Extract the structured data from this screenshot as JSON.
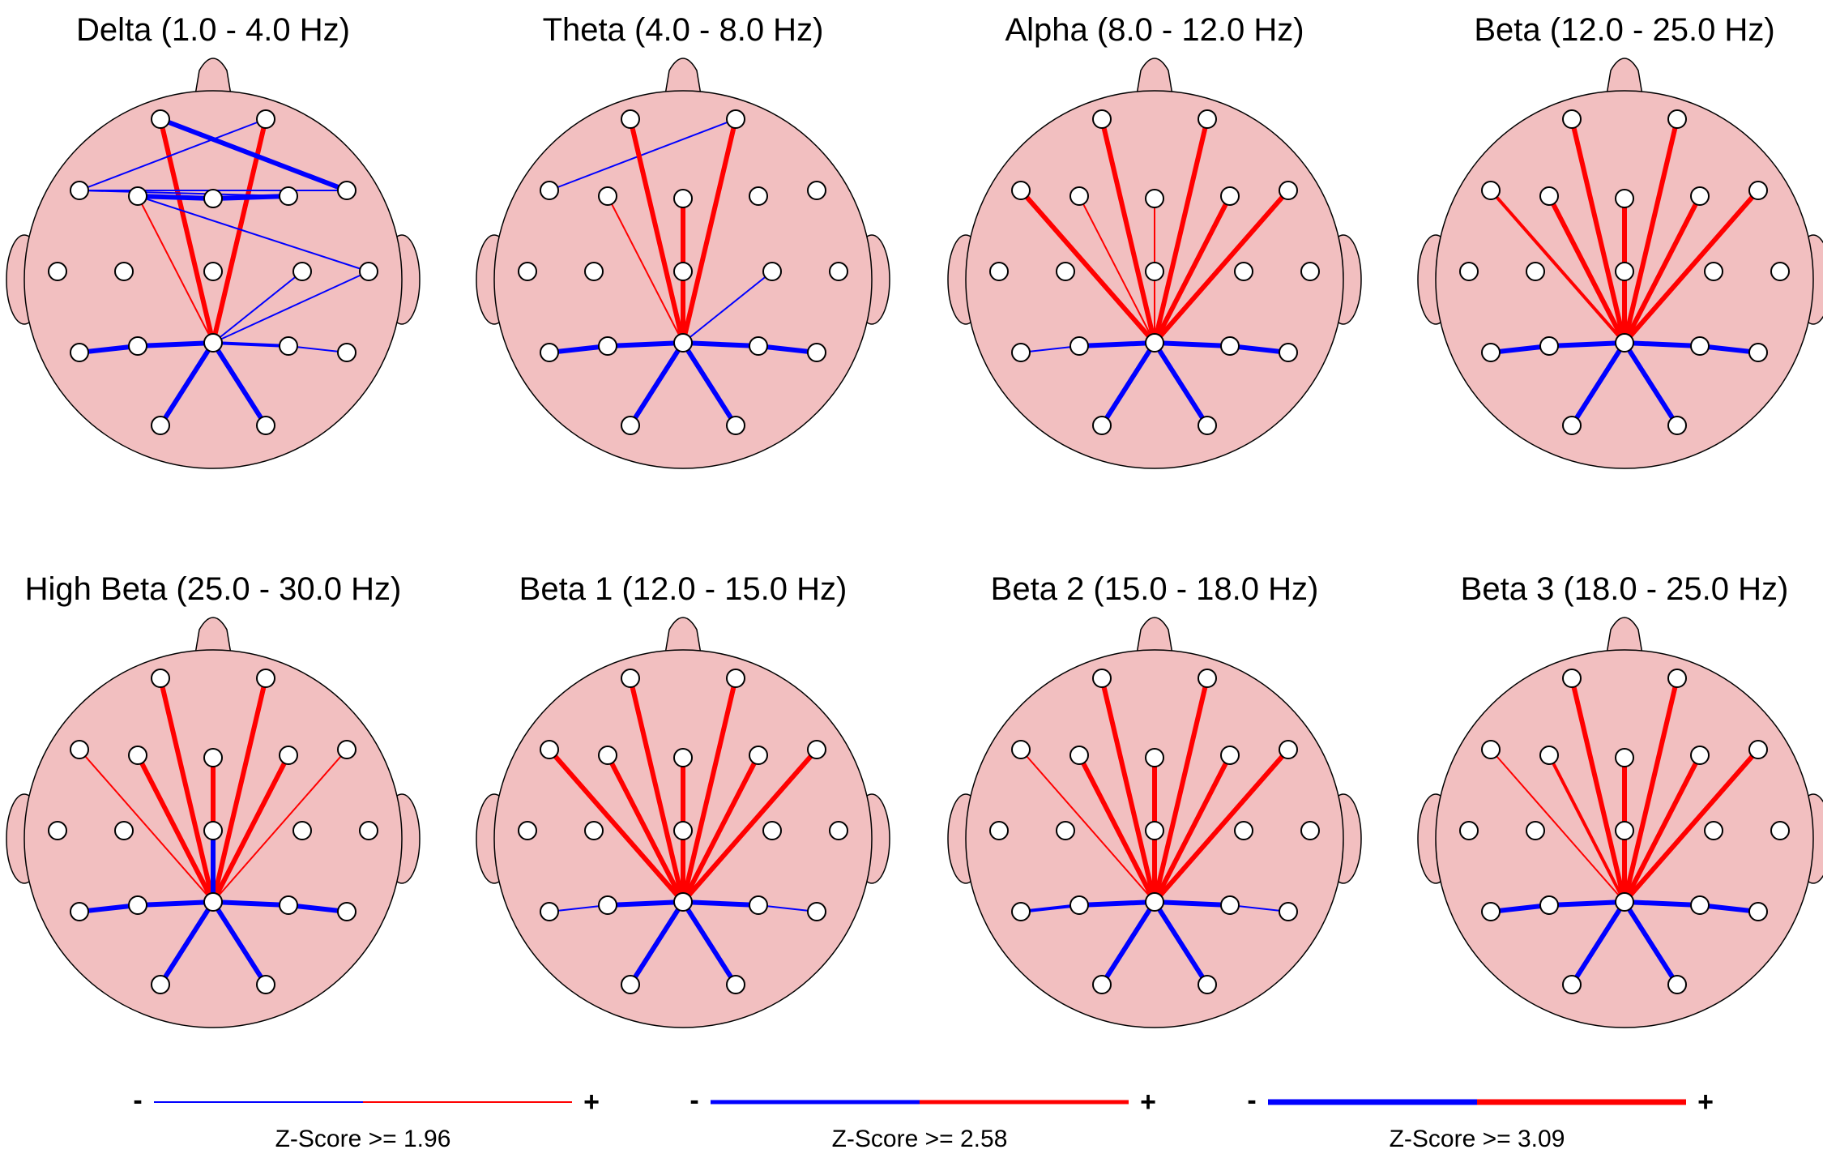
{
  "colors": {
    "head_fill": "#f2bfc0",
    "head_stroke": "#000000",
    "electrode_fill": "#ffffff",
    "positive": "#ff0000",
    "negative": "#0000ff"
  },
  "panels": [
    {
      "title": "Delta (1.0 - 4.0 Hz)",
      "connections": [
        [
          "FP1",
          "Pz",
          "+",
          3
        ],
        [
          "FP2",
          "Pz",
          "+",
          3
        ],
        [
          "FP1",
          "F8",
          "-",
          3
        ],
        [
          "FP2",
          "F7",
          "-",
          1
        ],
        [
          "F7",
          "F4",
          "-",
          1
        ],
        [
          "F7",
          "F8",
          "-",
          1
        ],
        [
          "F3",
          "Fz",
          "-",
          3
        ],
        [
          "Fz",
          "F4",
          "-",
          3
        ],
        [
          "F3",
          "Pz",
          "+",
          1
        ],
        [
          "F3",
          "T4",
          "-",
          1
        ],
        [
          "T4",
          "Pz",
          "-",
          1
        ],
        [
          "C4",
          "Pz",
          "-",
          1
        ],
        [
          "T5",
          "P3",
          "-",
          3
        ],
        [
          "P3",
          "Pz",
          "-",
          3
        ],
        [
          "Pz",
          "P4",
          "-",
          2
        ],
        [
          "P4",
          "T6",
          "-",
          1
        ],
        [
          "Pz",
          "O1",
          "-",
          3
        ],
        [
          "Pz",
          "O2",
          "-",
          3
        ]
      ]
    },
    {
      "title": "Theta (4.0 - 8.0 Hz)",
      "connections": [
        [
          "F7",
          "FP2",
          "-",
          1
        ],
        [
          "FP1",
          "Pz",
          "+",
          3
        ],
        [
          "FP2",
          "Pz",
          "+",
          3
        ],
        [
          "F3",
          "Pz",
          "+",
          1
        ],
        [
          "Fz",
          "Pz",
          "+",
          3
        ],
        [
          "C4",
          "Pz",
          "-",
          1
        ],
        [
          "T5",
          "P3",
          "-",
          3
        ],
        [
          "P3",
          "Pz",
          "-",
          3
        ],
        [
          "Pz",
          "P4",
          "-",
          3
        ],
        [
          "P4",
          "T6",
          "-",
          3
        ],
        [
          "Pz",
          "O1",
          "-",
          3
        ],
        [
          "Pz",
          "O2",
          "-",
          3
        ]
      ]
    },
    {
      "title": "Alpha (8.0 - 12.0 Hz)",
      "connections": [
        [
          "FP1",
          "Pz",
          "+",
          3
        ],
        [
          "FP2",
          "Pz",
          "+",
          3
        ],
        [
          "F7",
          "Pz",
          "+",
          3
        ],
        [
          "F8",
          "Pz",
          "+",
          3
        ],
        [
          "F3",
          "Pz",
          "+",
          1
        ],
        [
          "F4",
          "Pz",
          "+",
          3
        ],
        [
          "Fz",
          "Pz",
          "+",
          1
        ],
        [
          "T5",
          "P3",
          "-",
          1
        ],
        [
          "P3",
          "Pz",
          "-",
          3
        ],
        [
          "Pz",
          "P4",
          "-",
          3
        ],
        [
          "P4",
          "T6",
          "-",
          3
        ],
        [
          "Pz",
          "O1",
          "-",
          3
        ],
        [
          "Pz",
          "O2",
          "-",
          3
        ]
      ]
    },
    {
      "title": "Beta (12.0 - 25.0 Hz)",
      "connections": [
        [
          "FP1",
          "Pz",
          "+",
          3
        ],
        [
          "FP2",
          "Pz",
          "+",
          3
        ],
        [
          "F7",
          "Pz",
          "+",
          2
        ],
        [
          "F8",
          "Pz",
          "+",
          3
        ],
        [
          "F3",
          "Pz",
          "+",
          3
        ],
        [
          "F4",
          "Pz",
          "+",
          3
        ],
        [
          "Fz",
          "Pz",
          "+",
          3
        ],
        [
          "T5",
          "P3",
          "-",
          3
        ],
        [
          "P3",
          "Pz",
          "-",
          3
        ],
        [
          "Pz",
          "P4",
          "-",
          3
        ],
        [
          "P4",
          "T6",
          "-",
          3
        ],
        [
          "Pz",
          "O1",
          "-",
          3
        ],
        [
          "Pz",
          "O2",
          "-",
          3
        ]
      ]
    },
    {
      "title": "High Beta (25.0 - 30.0 Hz)",
      "connections": [
        [
          "FP1",
          "Pz",
          "+",
          3
        ],
        [
          "FP2",
          "Pz",
          "+",
          3
        ],
        [
          "F7",
          "Pz",
          "+",
          1
        ],
        [
          "F8",
          "Pz",
          "+",
          1
        ],
        [
          "F3",
          "Pz",
          "+",
          3
        ],
        [
          "F4",
          "Pz",
          "+",
          3
        ],
        [
          "Fz",
          "Pz",
          "+",
          3
        ],
        [
          "Cz",
          "Pz",
          "-",
          3
        ],
        [
          "T5",
          "P3",
          "-",
          3
        ],
        [
          "P3",
          "Pz",
          "-",
          3
        ],
        [
          "Pz",
          "P4",
          "-",
          3
        ],
        [
          "P4",
          "T6",
          "-",
          3
        ],
        [
          "Pz",
          "O1",
          "-",
          3
        ],
        [
          "Pz",
          "O2",
          "-",
          3
        ]
      ]
    },
    {
      "title": "Beta 1 (12.0 - 15.0 Hz)",
      "connections": [
        [
          "FP1",
          "Pz",
          "+",
          3
        ],
        [
          "FP2",
          "Pz",
          "+",
          3
        ],
        [
          "F7",
          "Pz",
          "+",
          3
        ],
        [
          "F8",
          "Pz",
          "+",
          3
        ],
        [
          "F3",
          "Pz",
          "+",
          3
        ],
        [
          "F4",
          "Pz",
          "+",
          3
        ],
        [
          "Fz",
          "Pz",
          "+",
          3
        ],
        [
          "T5",
          "P3",
          "-",
          1
        ],
        [
          "P3",
          "Pz",
          "-",
          3
        ],
        [
          "Pz",
          "P4",
          "-",
          3
        ],
        [
          "P4",
          "T6",
          "-",
          1
        ],
        [
          "Pz",
          "O1",
          "-",
          3
        ],
        [
          "Pz",
          "O2",
          "-",
          3
        ]
      ]
    },
    {
      "title": "Beta 2 (15.0 - 18.0 Hz)",
      "connections": [
        [
          "FP1",
          "Pz",
          "+",
          3
        ],
        [
          "FP2",
          "Pz",
          "+",
          3
        ],
        [
          "F7",
          "Pz",
          "+",
          1
        ],
        [
          "F8",
          "Pz",
          "+",
          3
        ],
        [
          "F3",
          "Pz",
          "+",
          3
        ],
        [
          "F4",
          "Pz",
          "+",
          3
        ],
        [
          "Fz",
          "Pz",
          "+",
          3
        ],
        [
          "T5",
          "P3",
          "-",
          2
        ],
        [
          "P3",
          "Pz",
          "-",
          3
        ],
        [
          "Pz",
          "P4",
          "-",
          3
        ],
        [
          "P4",
          "T6",
          "-",
          1
        ],
        [
          "Pz",
          "O1",
          "-",
          3
        ],
        [
          "Pz",
          "O2",
          "-",
          3
        ]
      ]
    },
    {
      "title": "Beta 3 (18.0 - 25.0 Hz)",
      "connections": [
        [
          "FP1",
          "Pz",
          "+",
          3
        ],
        [
          "FP2",
          "Pz",
          "+",
          3
        ],
        [
          "F7",
          "Pz",
          "+",
          1
        ],
        [
          "F8",
          "Pz",
          "+",
          3
        ],
        [
          "F3",
          "Pz",
          "+",
          2
        ],
        [
          "F4",
          "Pz",
          "+",
          3
        ],
        [
          "Fz",
          "Pz",
          "+",
          3
        ],
        [
          "T5",
          "P3",
          "-",
          3
        ],
        [
          "P3",
          "Pz",
          "-",
          3
        ],
        [
          "Pz",
          "P4",
          "-",
          3
        ],
        [
          "P4",
          "T6",
          "-",
          3
        ],
        [
          "Pz",
          "O1",
          "-",
          3
        ],
        [
          "Pz",
          "O2",
          "-",
          3
        ]
      ]
    }
  ],
  "legend": [
    {
      "label": "Z-Score >= 1.96",
      "minus": "-",
      "plus": "+"
    },
    {
      "label": "Z-Score >= 2.58",
      "minus": "-",
      "plus": "+"
    },
    {
      "label": "Z-Score >= 3.09",
      "minus": "-",
      "plus": "+"
    }
  ]
}
